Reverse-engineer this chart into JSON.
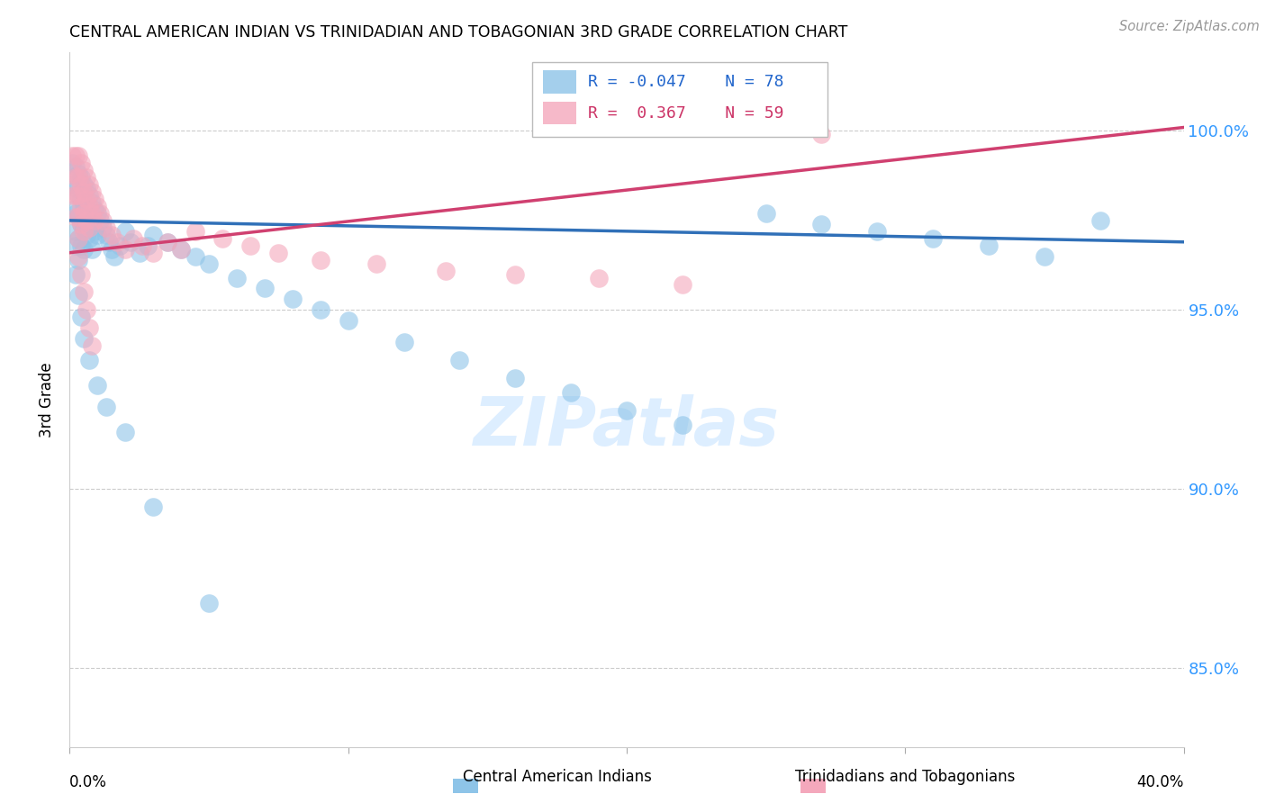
{
  "title": "CENTRAL AMERICAN INDIAN VS TRINIDADIAN AND TOBAGONIAN 3RD GRADE CORRELATION CHART",
  "source": "Source: ZipAtlas.com",
  "ylabel": "3rd Grade",
  "yticks": [
    "85.0%",
    "90.0%",
    "95.0%",
    "100.0%"
  ],
  "ytick_vals": [
    0.85,
    0.9,
    0.95,
    1.0
  ],
  "xlim": [
    0.0,
    0.4
  ],
  "ylim": [
    0.828,
    1.022
  ],
  "legend_blue_label": "Central American Indians",
  "legend_pink_label": "Trinidadians and Tobagonians",
  "blue_R": "-0.047",
  "blue_N": "78",
  "pink_R": "0.367",
  "pink_N": "59",
  "blue_color": "#8ec4e8",
  "pink_color": "#f4a8bc",
  "blue_line_color": "#3070b8",
  "pink_line_color": "#d04070",
  "blue_trend": [
    0.0,
    0.975,
    0.4,
    0.969
  ],
  "pink_trend": [
    0.0,
    0.966,
    0.4,
    1.001
  ],
  "blue_points_x": [
    0.001,
    0.001,
    0.001,
    0.002,
    0.002,
    0.002,
    0.002,
    0.002,
    0.003,
    0.003,
    0.003,
    0.003,
    0.003,
    0.004,
    0.004,
    0.004,
    0.004,
    0.005,
    0.005,
    0.005,
    0.005,
    0.006,
    0.006,
    0.006,
    0.007,
    0.007,
    0.007,
    0.008,
    0.008,
    0.008,
    0.009,
    0.009,
    0.01,
    0.01,
    0.011,
    0.012,
    0.013,
    0.014,
    0.015,
    0.016,
    0.018,
    0.02,
    0.022,
    0.025,
    0.028,
    0.03,
    0.035,
    0.04,
    0.045,
    0.05,
    0.06,
    0.07,
    0.08,
    0.09,
    0.1,
    0.12,
    0.14,
    0.16,
    0.18,
    0.2,
    0.22,
    0.25,
    0.27,
    0.29,
    0.31,
    0.33,
    0.35,
    0.37,
    0.002,
    0.003,
    0.004,
    0.005,
    0.007,
    0.01,
    0.013,
    0.02,
    0.03,
    0.05
  ],
  "blue_points_y": [
    0.991,
    0.985,
    0.978,
    0.99,
    0.984,
    0.977,
    0.972,
    0.968,
    0.988,
    0.982,
    0.976,
    0.97,
    0.964,
    0.987,
    0.981,
    0.974,
    0.968,
    0.985,
    0.979,
    0.973,
    0.967,
    0.984,
    0.978,
    0.971,
    0.982,
    0.976,
    0.97,
    0.98,
    0.974,
    0.967,
    0.978,
    0.972,
    0.977,
    0.971,
    0.975,
    0.973,
    0.971,
    0.969,
    0.967,
    0.965,
    0.968,
    0.972,
    0.969,
    0.966,
    0.968,
    0.971,
    0.969,
    0.967,
    0.965,
    0.963,
    0.959,
    0.956,
    0.953,
    0.95,
    0.947,
    0.941,
    0.936,
    0.931,
    0.927,
    0.922,
    0.918,
    0.977,
    0.974,
    0.972,
    0.97,
    0.968,
    0.965,
    0.975,
    0.96,
    0.954,
    0.948,
    0.942,
    0.936,
    0.929,
    0.923,
    0.916,
    0.895,
    0.868
  ],
  "pink_points_x": [
    0.001,
    0.001,
    0.001,
    0.002,
    0.002,
    0.002,
    0.002,
    0.003,
    0.003,
    0.003,
    0.003,
    0.003,
    0.004,
    0.004,
    0.004,
    0.004,
    0.005,
    0.005,
    0.005,
    0.005,
    0.006,
    0.006,
    0.006,
    0.007,
    0.007,
    0.007,
    0.008,
    0.008,
    0.009,
    0.009,
    0.01,
    0.011,
    0.012,
    0.013,
    0.015,
    0.017,
    0.02,
    0.023,
    0.026,
    0.03,
    0.035,
    0.04,
    0.045,
    0.055,
    0.065,
    0.075,
    0.09,
    0.11,
    0.135,
    0.16,
    0.19,
    0.22,
    0.27,
    0.003,
    0.004,
    0.005,
    0.006,
    0.007,
    0.008
  ],
  "pink_points_y": [
    0.993,
    0.988,
    0.982,
    0.993,
    0.987,
    0.982,
    0.976,
    0.993,
    0.987,
    0.982,
    0.976,
    0.97,
    0.991,
    0.985,
    0.979,
    0.974,
    0.989,
    0.983,
    0.977,
    0.972,
    0.987,
    0.981,
    0.975,
    0.985,
    0.979,
    0.973,
    0.983,
    0.977,
    0.981,
    0.975,
    0.979,
    0.977,
    0.975,
    0.973,
    0.971,
    0.969,
    0.967,
    0.97,
    0.968,
    0.966,
    0.969,
    0.967,
    0.972,
    0.97,
    0.968,
    0.966,
    0.964,
    0.963,
    0.961,
    0.96,
    0.959,
    0.957,
    0.999,
    0.965,
    0.96,
    0.955,
    0.95,
    0.945,
    0.94
  ]
}
